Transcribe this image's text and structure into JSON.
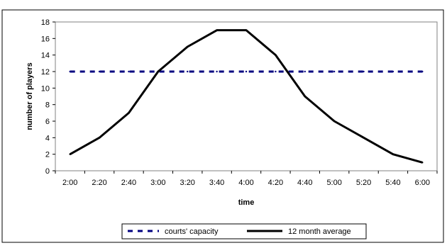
{
  "chart_data": {
    "type": "line",
    "categories": [
      "2:00",
      "2:20",
      "2:40",
      "3:00",
      "3:20",
      "3:40",
      "4:00",
      "4:20",
      "4:40",
      "5:00",
      "5:20",
      "5:40",
      "6:00"
    ],
    "series": [
      {
        "name": "courts' capacity",
        "values": [
          12,
          12,
          12,
          12,
          12,
          12,
          12,
          12,
          12,
          12,
          12,
          12,
          12
        ],
        "color": "#000080",
        "style": "dashed"
      },
      {
        "name": "12 month average",
        "values": [
          2,
          4,
          7,
          12,
          15,
          17,
          17,
          14,
          9,
          6,
          4,
          2,
          1
        ],
        "color": "#000000",
        "style": "solid"
      }
    ],
    "xlabel": "time",
    "ylabel": "number of players",
    "ylim": [
      0,
      18
    ],
    "yticks": [
      0,
      2,
      4,
      6,
      8,
      10,
      12,
      14,
      16,
      18
    ],
    "grid": false,
    "legend": "bottom"
  }
}
